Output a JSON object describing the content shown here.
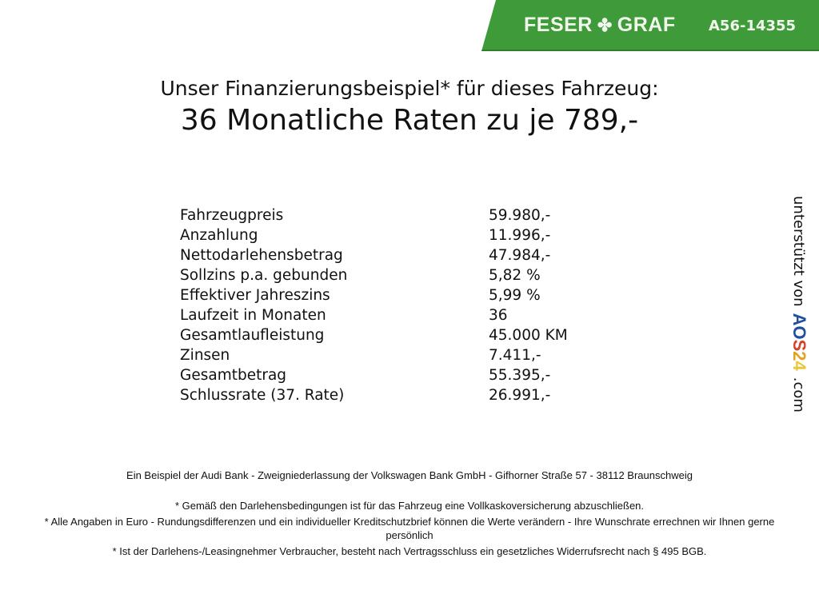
{
  "header": {
    "brand_left": "FESER",
    "brand_right": "GRAF",
    "code": "A56-14355",
    "color": "#3f9a3a"
  },
  "title": {
    "line1": "Unser Finanzierungsbeispiel* für dieses Fahrzeug:",
    "line2": "36 Monatliche Raten zu je 789,-"
  },
  "rows": [
    {
      "label": "Fahrzeugpreis",
      "value": "59.980,-"
    },
    {
      "label": "Anzahlung",
      "value": "11.996,-"
    },
    {
      "label": "Nettodarlehensbetrag",
      "value": "47.984,-"
    },
    {
      "label": "Sollzins p.a. gebunden",
      "value": "5,82 %"
    },
    {
      "label": "Effektiver Jahreszins",
      "value": "5,99 %"
    },
    {
      "label": "Laufzeit in Monaten",
      "value": "36"
    },
    {
      "label": "Gesamtlaufleistung",
      "value": "45.000 KM"
    },
    {
      "label": "Zinsen",
      "value": "7.411,-"
    },
    {
      "label": "Gesamtbetrag",
      "value": "55.395,-"
    },
    {
      "label": "Schlussrate (37. Rate)",
      "value": "26.991,-"
    }
  ],
  "side": {
    "text": "unterstützt von",
    "logo_a": "AO",
    "logo_b": "S",
    "logo_c": "2",
    "logo_d": "4",
    "suffix": ".com"
  },
  "footer": [
    "Ein Beispiel der Audi Bank - Zweigniederlassung der Volkswagen Bank GmbH - Gifhorner Straße 57 - 38112 Braunschweig",
    "* Gemäß den Darlehensbedingungen ist für das Fahrzeug eine Vollkaskoversicherung abzuschließen.",
    "* Alle Angaben in Euro - Rundungsdifferenzen und ein individueller Kreditschutzbrief können die Werte verändern - Ihre Wunschrate errechnen wir Ihnen gerne persönlich",
    "* Ist der Darlehens-/Leasingnehmer Verbraucher, besteht nach Vertragsschluss ein gesetzliches Widerrufsrecht nach § 495 BGB."
  ]
}
